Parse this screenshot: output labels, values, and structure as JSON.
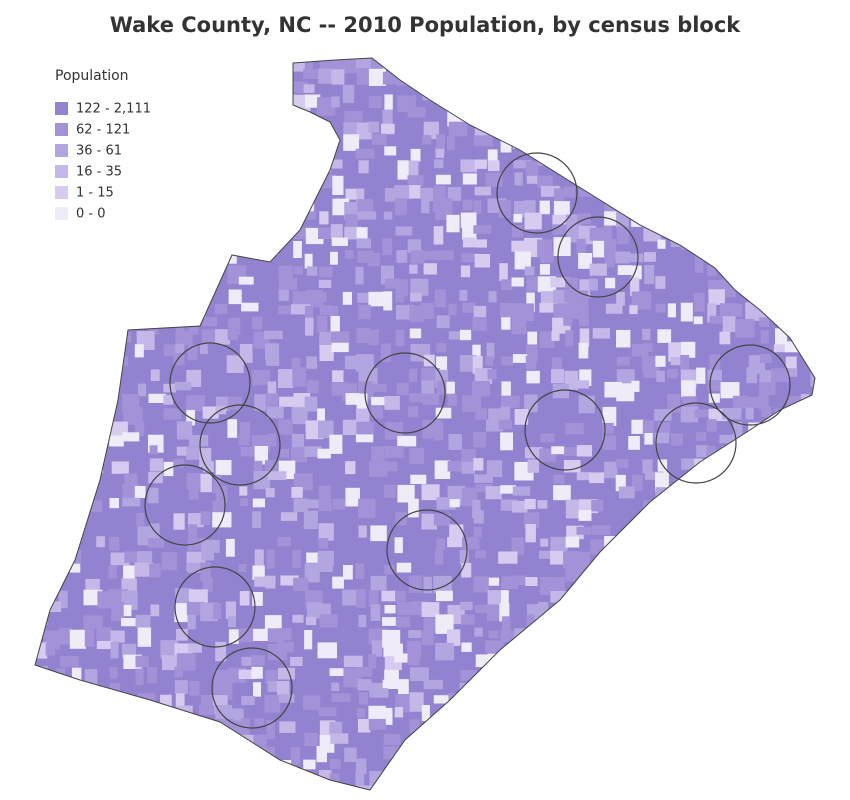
{
  "title": "Wake County, NC -- 2010 Population, by census block",
  "legend": {
    "title": "Population",
    "items": [
      {
        "label": "122 - 2,111",
        "color": "#9382cf"
      },
      {
        "label": "62 - 121",
        "color": "#a392d8"
      },
      {
        "label": "36 - 61",
        "color": "#b3a5df"
      },
      {
        "label": "16 - 35",
        "color": "#c5b8e8"
      },
      {
        "label": "1 - 15",
        "color": "#d7ccf0"
      },
      {
        "label": "0 - 0",
        "color": "#efebf7"
      }
    ]
  }
}
